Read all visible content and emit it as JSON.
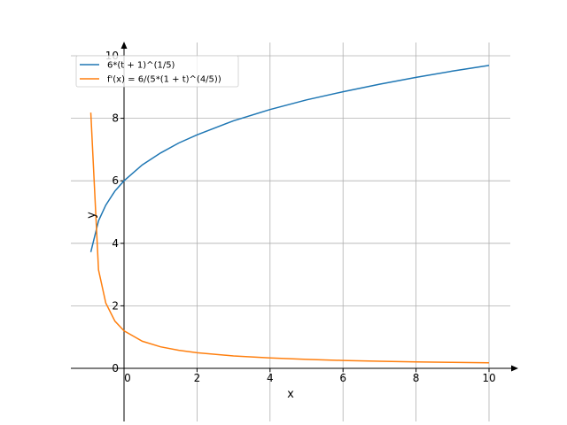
{
  "chart_data": {
    "type": "line",
    "title": "",
    "xlabel": "x",
    "ylabel": "y",
    "xlim": [
      -1.46,
      10.8
    ],
    "ylim": [
      0,
      10.4
    ],
    "grid": true,
    "legend_placement": "top-left",
    "xticks": [
      "0",
      "2",
      "4",
      "6",
      "8",
      "10"
    ],
    "xtick_values": [
      0,
      2,
      4,
      6,
      8,
      10
    ],
    "yticks": [
      "0",
      "2",
      "4",
      "6",
      "8",
      "10"
    ],
    "ytick_values": [
      0,
      2,
      4,
      6,
      8,
      10
    ],
    "x": [
      -0.909,
      -0.7,
      -0.5,
      -0.25,
      0,
      0.5,
      1,
      1.5,
      2,
      3,
      4,
      5,
      6,
      7,
      8,
      9,
      10
    ],
    "series": [
      {
        "name": "6*(t + 1)^(1/5)",
        "color": "#1f77b4",
        "values": [
          3.72,
          4.72,
          5.22,
          5.67,
          6.0,
          6.51,
          6.89,
          7.21,
          7.47,
          7.92,
          8.28,
          8.59,
          8.85,
          9.09,
          9.31,
          9.51,
          9.69
        ]
      },
      {
        "name": "f'(x) = 6/(5*(1 + t)^(4/5))",
        "color": "#ff7f0e",
        "values": [
          8.18,
          3.15,
          2.09,
          1.51,
          1.2,
          0.868,
          0.689,
          0.577,
          0.498,
          0.396,
          0.331,
          0.286,
          0.253,
          0.227,
          0.207,
          0.19,
          0.176
        ]
      }
    ]
  }
}
